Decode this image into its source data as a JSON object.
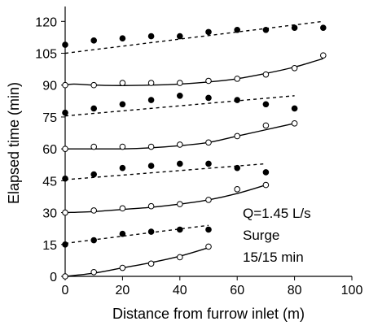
{
  "chart_data": {
    "type": "scatter",
    "xlabel": "Distance from furrow inlet (m)",
    "ylabel": "Elapsed time (min)",
    "xlim": [
      0,
      100
    ],
    "ylim": [
      0,
      127
    ],
    "xticks": [
      "0",
      "20",
      "40",
      "60",
      "80",
      "100"
    ],
    "yticks": [
      "0",
      "15",
      "30",
      "45",
      "60",
      "75",
      "90",
      "105",
      "120"
    ],
    "grid": false,
    "annotations": [
      "Q=1.45 L/s",
      "Surge",
      "15/15 min"
    ],
    "series": [
      {
        "marker": "open",
        "line": "solid",
        "x": [
          0,
          10,
          20,
          30,
          40,
          50
        ],
        "y": [
          0,
          2,
          4,
          6,
          9,
          14
        ],
        "fit": [
          [
            0,
            0
          ],
          [
            10,
            1.5
          ],
          [
            20,
            4
          ],
          [
            30,
            6.5
          ],
          [
            40,
            9.5
          ],
          [
            50,
            13.5
          ]
        ]
      },
      {
        "marker": "filled",
        "line": "dashed",
        "x": [
          0,
          10,
          20,
          30,
          40,
          50
        ],
        "y": [
          15,
          17,
          20,
          21,
          22,
          22
        ],
        "fit": [
          [
            0,
            15.5
          ],
          [
            50,
            24
          ]
        ]
      },
      {
        "marker": "open",
        "line": "solid",
        "x": [
          0,
          10,
          20,
          30,
          40,
          50,
          60,
          70
        ],
        "y": [
          30,
          31,
          32,
          33,
          34,
          36,
          41,
          43
        ],
        "fit": [
          [
            0,
            30
          ],
          [
            10,
            30.5
          ],
          [
            20,
            31.5
          ],
          [
            30,
            32.5
          ],
          [
            40,
            34
          ],
          [
            50,
            36
          ],
          [
            60,
            39
          ],
          [
            70,
            43
          ]
        ]
      },
      {
        "marker": "filled",
        "line": "dashed",
        "x": [
          0,
          10,
          20,
          30,
          40,
          50,
          60,
          70
        ],
        "y": [
          46,
          48,
          51,
          52,
          53,
          53,
          51,
          49
        ],
        "fit": [
          [
            0,
            45.5
          ],
          [
            70,
            53
          ]
        ]
      },
      {
        "marker": "open",
        "line": "solid",
        "x": [
          0,
          10,
          20,
          30,
          40,
          50,
          60,
          70,
          80
        ],
        "y": [
          60,
          61,
          61,
          61,
          62,
          63,
          66,
          71,
          72
        ],
        "fit": [
          [
            0,
            60
          ],
          [
            10,
            60
          ],
          [
            20,
            60
          ],
          [
            30,
            60.5
          ],
          [
            40,
            61.5
          ],
          [
            50,
            63
          ],
          [
            60,
            66
          ],
          [
            70,
            69
          ],
          [
            80,
            72
          ]
        ]
      },
      {
        "marker": "filled",
        "line": "dashed",
        "x": [
          0,
          10,
          20,
          30,
          40,
          50,
          60,
          70,
          80
        ],
        "y": [
          77,
          79,
          81,
          83,
          85,
          84,
          83,
          81,
          79
        ],
        "fit": [
          [
            0,
            75.5
          ],
          [
            80,
            85
          ]
        ]
      },
      {
        "marker": "open",
        "line": "solid",
        "x": [
          0,
          10,
          20,
          30,
          40,
          50,
          60,
          70,
          80,
          90
        ],
        "y": [
          90,
          90,
          91,
          91,
          91,
          92,
          93,
          95,
          98,
          104
        ],
        "fit": [
          [
            0,
            90
          ],
          [
            3,
            90.5
          ],
          [
            10,
            90
          ],
          [
            20,
            89.8
          ],
          [
            30,
            90
          ],
          [
            40,
            90.5
          ],
          [
            50,
            91.5
          ],
          [
            60,
            93
          ],
          [
            70,
            95.5
          ],
          [
            80,
            98.5
          ],
          [
            90,
            102.5
          ]
        ]
      },
      {
        "marker": "filled",
        "line": "dashed",
        "x": [
          0,
          10,
          20,
          30,
          40,
          50,
          60,
          70,
          80,
          90
        ],
        "y": [
          109,
          111,
          112,
          113,
          113,
          115,
          116,
          116,
          117,
          117
        ],
        "fit": [
          [
            0,
            105
          ],
          [
            90,
            120
          ]
        ]
      }
    ]
  }
}
